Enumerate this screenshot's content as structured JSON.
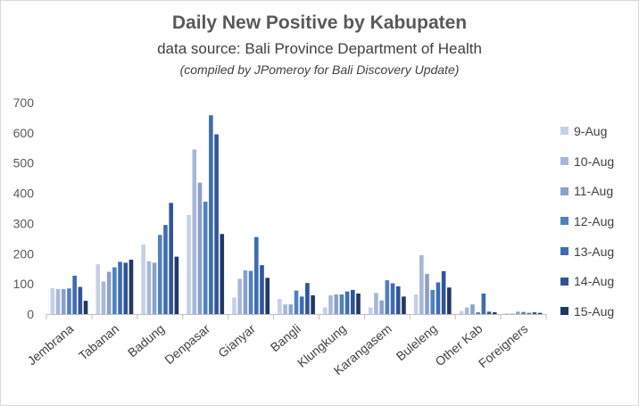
{
  "chart_data": {
    "type": "bar",
    "title": "Daily New Positive by Kabupaten",
    "subtitle": "data source:  Bali Province Department of Health",
    "note": "(compiled by JPomeroy for Bali Discovery Update)",
    "xlabel": "",
    "ylabel": "",
    "ylim": [
      0,
      700
    ],
    "yticks": [
      0,
      100,
      200,
      300,
      400,
      500,
      600,
      700
    ],
    "grid": false,
    "legend_position": "right",
    "categories": [
      "Jembrana",
      "Tabanan",
      "Badung",
      "Denpasar",
      "Gianyar",
      "Bangli",
      "Klungkung",
      "Karangasem",
      "Buleleng",
      "Other Kab",
      "Foreigners"
    ],
    "series": [
      {
        "name": "9-Aug",
        "color": "#c5d0e6",
        "values": [
          86,
          165,
          230,
          328,
          55,
          50,
          22,
          22,
          65,
          10,
          3
        ]
      },
      {
        "name": "10-Aug",
        "color": "#a7b7d9",
        "values": [
          83,
          108,
          175,
          545,
          117,
          32,
          62,
          70,
          195,
          22,
          2
        ]
      },
      {
        "name": "11-Aug",
        "color": "#8aa0cc",
        "values": [
          83,
          140,
          170,
          435,
          145,
          32,
          65,
          45,
          133,
          32,
          8
        ]
      },
      {
        "name": "12-Aug",
        "color": "#4f81bd",
        "values": [
          85,
          155,
          262,
          372,
          143,
          78,
          65,
          112,
          80,
          6,
          7
        ]
      },
      {
        "name": "13-Aug",
        "color": "#3d6cb5",
        "values": [
          127,
          173,
          295,
          658,
          255,
          58,
          75,
          102,
          105,
          68,
          4
        ]
      },
      {
        "name": "14-Aug",
        "color": "#2f5597",
        "values": [
          90,
          170,
          368,
          595,
          162,
          103,
          80,
          92,
          142,
          8,
          6
        ]
      },
      {
        "name": "15-Aug",
        "color": "#203864",
        "values": [
          44,
          180,
          190,
          265,
          120,
          62,
          68,
          58,
          88,
          6,
          4
        ]
      }
    ]
  }
}
